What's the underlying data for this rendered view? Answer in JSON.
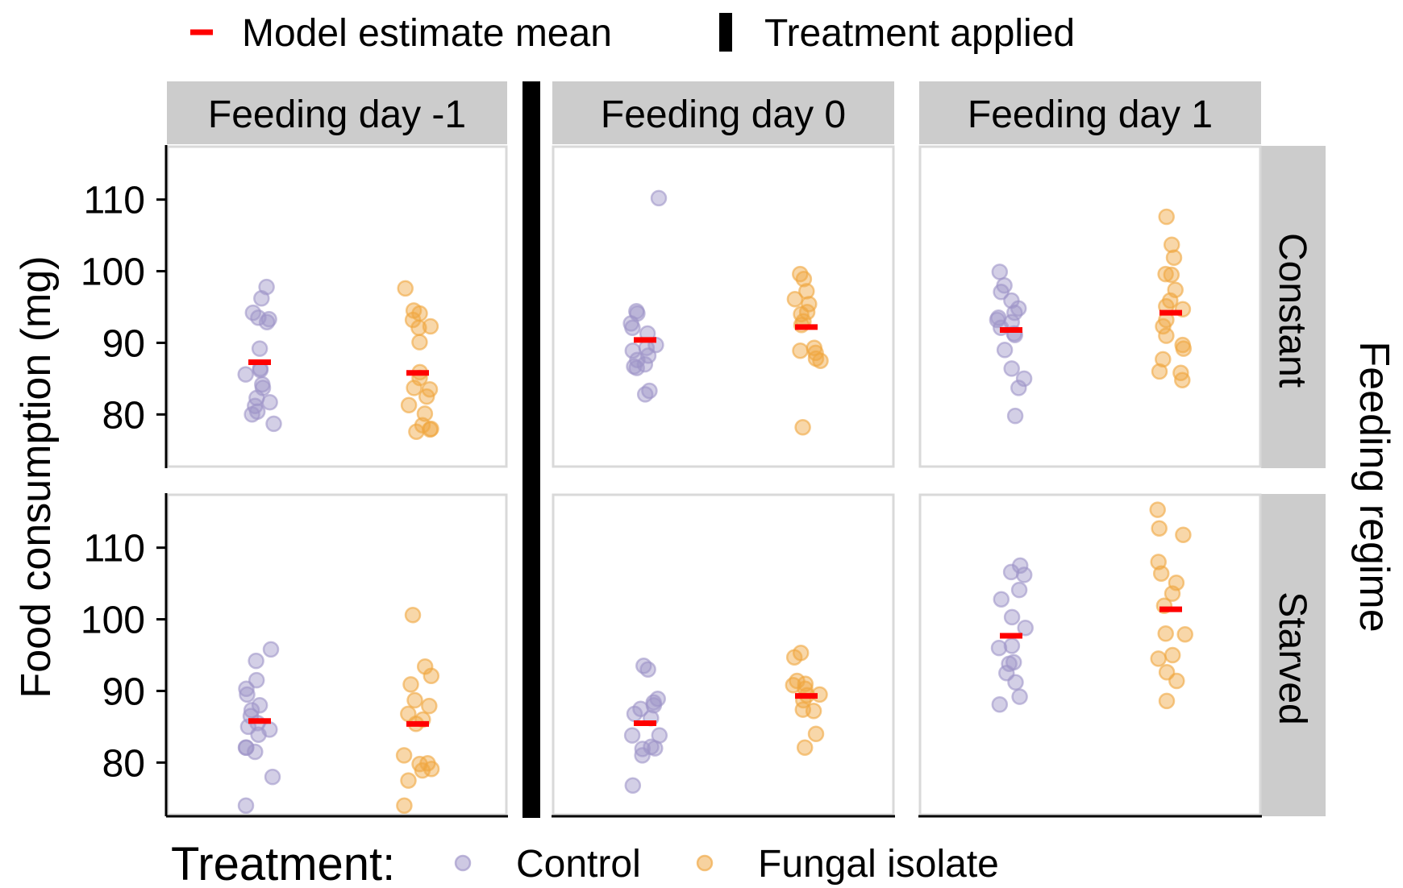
{
  "chart_data": {
    "type": "scatter",
    "title": "",
    "ylabel": "Food consumption (mg)",
    "ylim": [
      72.5,
      117.5
    ],
    "yticks": [
      80,
      90,
      100,
      110
    ],
    "columns": [
      "Feeding day -1",
      "Feeding day 0",
      "Feeding day 1"
    ],
    "rows": [
      "Constant",
      "Starved"
    ],
    "row_facet_title": "Feeding regime",
    "treatments": [
      "Control",
      "Fungal isolate"
    ],
    "treatment_legend_title": "Treatment:",
    "legend_top": {
      "mean_label": "Model estimate mean",
      "treatment_applied_label": "Treatment applied",
      "treatment_applied_between": [
        "Feeding day -1",
        "Feeding day 0"
      ]
    },
    "colors": {
      "Control": "#9e94c8",
      "Fungal isolate": "#f0a640",
      "mean": "#ff0000",
      "treatment_line": "#000000"
    },
    "panels": [
      {
        "column": "Feeding day -1",
        "row": "Constant",
        "series": [
          {
            "name": "Control",
            "mean": 87.3,
            "values": [
              97.8,
              96.2,
              93.5,
              94.2,
              93.3,
              92.9,
              89.2,
              86.4,
              86.2,
              85.6,
              84.2,
              83.7,
              82.3,
              81.7,
              81.2,
              80.4,
              80.0,
              78.7
            ]
          },
          {
            "name": "Fungal isolate",
            "mean": 85.8,
            "values": [
              97.6,
              94.5,
              93.2,
              92.3,
              92.1,
              94.1,
              90.1,
              85.9,
              85.1,
              83.7,
              83.5,
              82.5,
              81.3,
              80.1,
              78.5,
              78.0,
              77.6,
              77.9
            ]
          }
        ]
      },
      {
        "column": "Feeding day 0",
        "row": "Constant",
        "series": [
          {
            "name": "Control",
            "mean": 90.4,
            "values": [
              110.2,
              94.4,
              94.1,
              92.7,
              92.1,
              91.3,
              89.7,
              89.3,
              88.9,
              88.2,
              87.6,
              87.0,
              86.7,
              86.5,
              83.3,
              82.8
            ]
          },
          {
            "name": "Fungal isolate",
            "mean": 92.2,
            "values": [
              99.6,
              98.9,
              97.2,
              96.1,
              95.4,
              94.0,
              94.3,
              93.0,
              92.5,
              89.3,
              88.9,
              88.6,
              87.8,
              87.5,
              78.2
            ]
          }
        ]
      },
      {
        "column": "Feeding day 1",
        "row": "Constant",
        "series": [
          {
            "name": "Control",
            "mean": 91.8,
            "values": [
              99.9,
              98.0,
              97.1,
              95.9,
              94.8,
              94.2,
              93.5,
              93.2,
              92.9,
              92.1,
              91.3,
              91.1,
              89.0,
              86.4,
              85.0,
              83.7,
              79.8
            ]
          },
          {
            "name": "Fungal isolate",
            "mean": 94.2,
            "values": [
              107.6,
              103.7,
              101.9,
              99.6,
              99.5,
              97.4,
              95.9,
              95.1,
              94.7,
              93.2,
              92.3,
              91.0,
              89.7,
              89.2,
              87.7,
              86.0,
              85.8,
              84.8
            ]
          }
        ]
      },
      {
        "column": "Feeding day -1",
        "row": "Starved",
        "series": [
          {
            "name": "Control",
            "mean": 85.8,
            "values": [
              95.8,
              94.2,
              91.5,
              90.3,
              89.5,
              88.0,
              87.3,
              86.5,
              85.5,
              85.0,
              84.6,
              83.9,
              82.1,
              82.1,
              81.5,
              78.0,
              74.0
            ]
          },
          {
            "name": "Fungal isolate",
            "mean": 85.4,
            "values": [
              100.6,
              93.4,
              92.1,
              90.9,
              88.7,
              87.9,
              86.8,
              86.0,
              85.4,
              81.0,
              79.9,
              79.8,
              79.1,
              78.9,
              77.5,
              74.0
            ]
          }
        ]
      },
      {
        "column": "Feeding day 0",
        "row": "Starved",
        "series": [
          {
            "name": "Control",
            "mean": 85.5,
            "values": [
              93.5,
              93.0,
              88.9,
              88.4,
              88.0,
              87.5,
              86.8,
              86.2,
              83.8,
              83.8,
              82.2,
              82.0,
              81.9,
              81.0,
              76.8
            ]
          },
          {
            "name": "Fungal isolate",
            "mean": 89.3,
            "values": [
              95.3,
              94.7,
              91.4,
              91.0,
              90.8,
              90.3,
              89.5,
              89.4,
              88.7,
              87.4,
              87.2,
              84.0,
              82.1
            ]
          }
        ]
      },
      {
        "column": "Feeding day 1",
        "row": "Starved",
        "series": [
          {
            "name": "Control",
            "mean": 97.7,
            "values": [
              107.5,
              106.6,
              106.2,
              104.1,
              102.8,
              100.3,
              98.8,
              96.3,
              96.0,
              94.0,
              93.8,
              92.5,
              91.2,
              89.2,
              88.1
            ]
          },
          {
            "name": "Fungal isolate",
            "mean": 101.4,
            "values": [
              115.3,
              112.7,
              111.8,
              108.0,
              106.4,
              105.1,
              103.6,
              101.9,
              98.0,
              97.9,
              95.0,
              94.5,
              92.6,
              91.4,
              88.6
            ]
          }
        ]
      }
    ]
  }
}
